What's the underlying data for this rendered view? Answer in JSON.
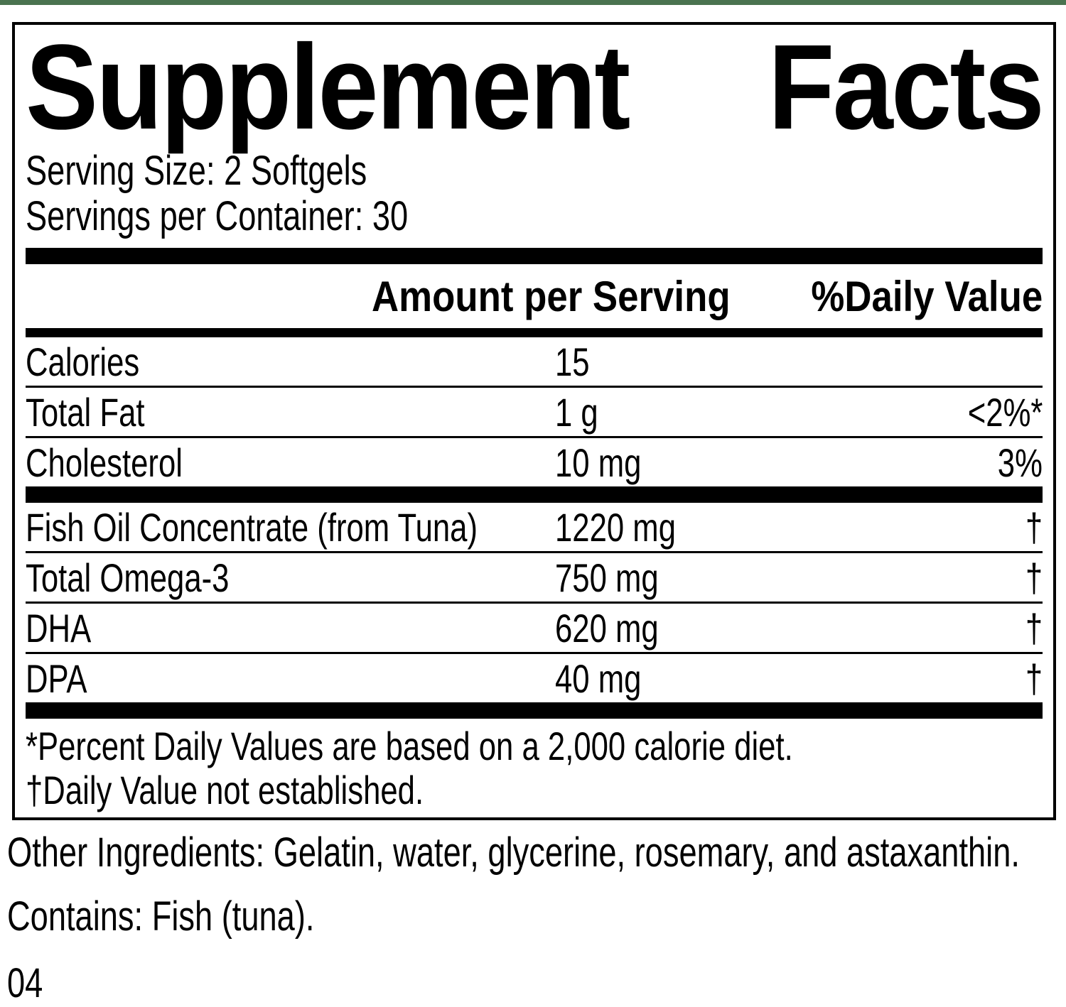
{
  "label": {
    "title_left": "Supplement",
    "title_right": "Facts",
    "serving_size": "Serving Size: 2 Softgels",
    "servings_per_container": "Servings per Container: 30",
    "header": {
      "amount": "Amount per Serving",
      "daily_value": "%Daily Value"
    },
    "rows": [
      {
        "label": "Calories",
        "amount": "15",
        "dv": ""
      },
      {
        "label": "Total Fat",
        "amount": "1 g",
        "dv": "<2%*"
      },
      {
        "label": "Cholesterol",
        "amount": "10 mg",
        "dv": "3%"
      },
      {
        "label": "Fish Oil Concentrate (from Tuna)",
        "amount": "1220 mg",
        "dv": "†"
      },
      {
        "label": "Total Omega-3",
        "amount": "750 mg",
        "dv": "†"
      },
      {
        "label": "DHA",
        "amount": "620 mg",
        "dv": "†"
      },
      {
        "label": "DPA",
        "amount": "40 mg",
        "dv": "†"
      }
    ],
    "footnotes": [
      "*Percent Daily Values are based on a 2,000 calorie diet.",
      "†Daily Value not established."
    ]
  },
  "below": {
    "other_ingredients": "Other Ingredients: Gelatin, water, glycerine, rosemary, and astaxanthin.",
    "contains": "Contains: Fish (tuna).",
    "code": "04"
  },
  "colors": {
    "top_strip_green": "#4a7350",
    "text": "#000000",
    "background": "#ffffff"
  }
}
